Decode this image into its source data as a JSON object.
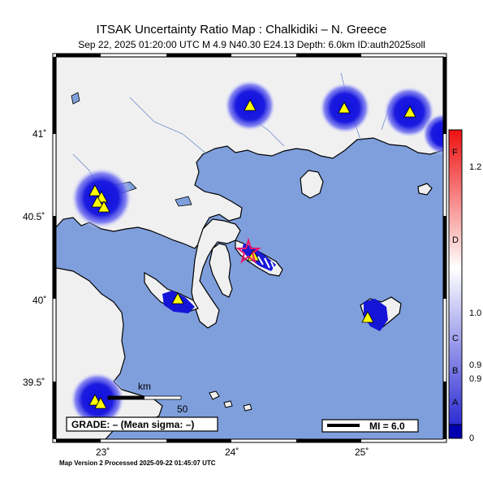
{
  "title": "ITSAK Uncertainty Ratio Map : Chalkidiki – N. Greece",
  "subtitle": "Sep 22, 2025 01:20:00 UTC   M 4.9   N40.30 E24.13   Depth: 6.0km   ID:auth2025soll",
  "footer": "Map Version 2 Processed 2025-09-22 01:45:07 UTC",
  "grade_text": "GRADE: – (Mean sigma: –)",
  "mi_text": "MI = 6.0",
  "scale": {
    "unit": "km",
    "value": "50"
  },
  "axes": {
    "lon_ticks": [
      "23˚",
      "24˚",
      "25˚"
    ],
    "lat_ticks": [
      "41˚",
      "40.5˚",
      "40˚",
      "39.5˚"
    ]
  },
  "colorbar": {
    "letters": [
      "F",
      "D",
      "C",
      "B",
      "A"
    ],
    "values": [
      "1.2",
      "1.0",
      "0.9",
      "0.9",
      "0"
    ],
    "colors": [
      "#1a1ad0",
      "#ffffff",
      "#ee1111"
    ]
  },
  "colors": {
    "sea": "#7f9fdc",
    "land": "#f0f0f0",
    "station": "#ffff00",
    "epicenter": "#e8146e"
  },
  "stations_count_visible": 12
}
